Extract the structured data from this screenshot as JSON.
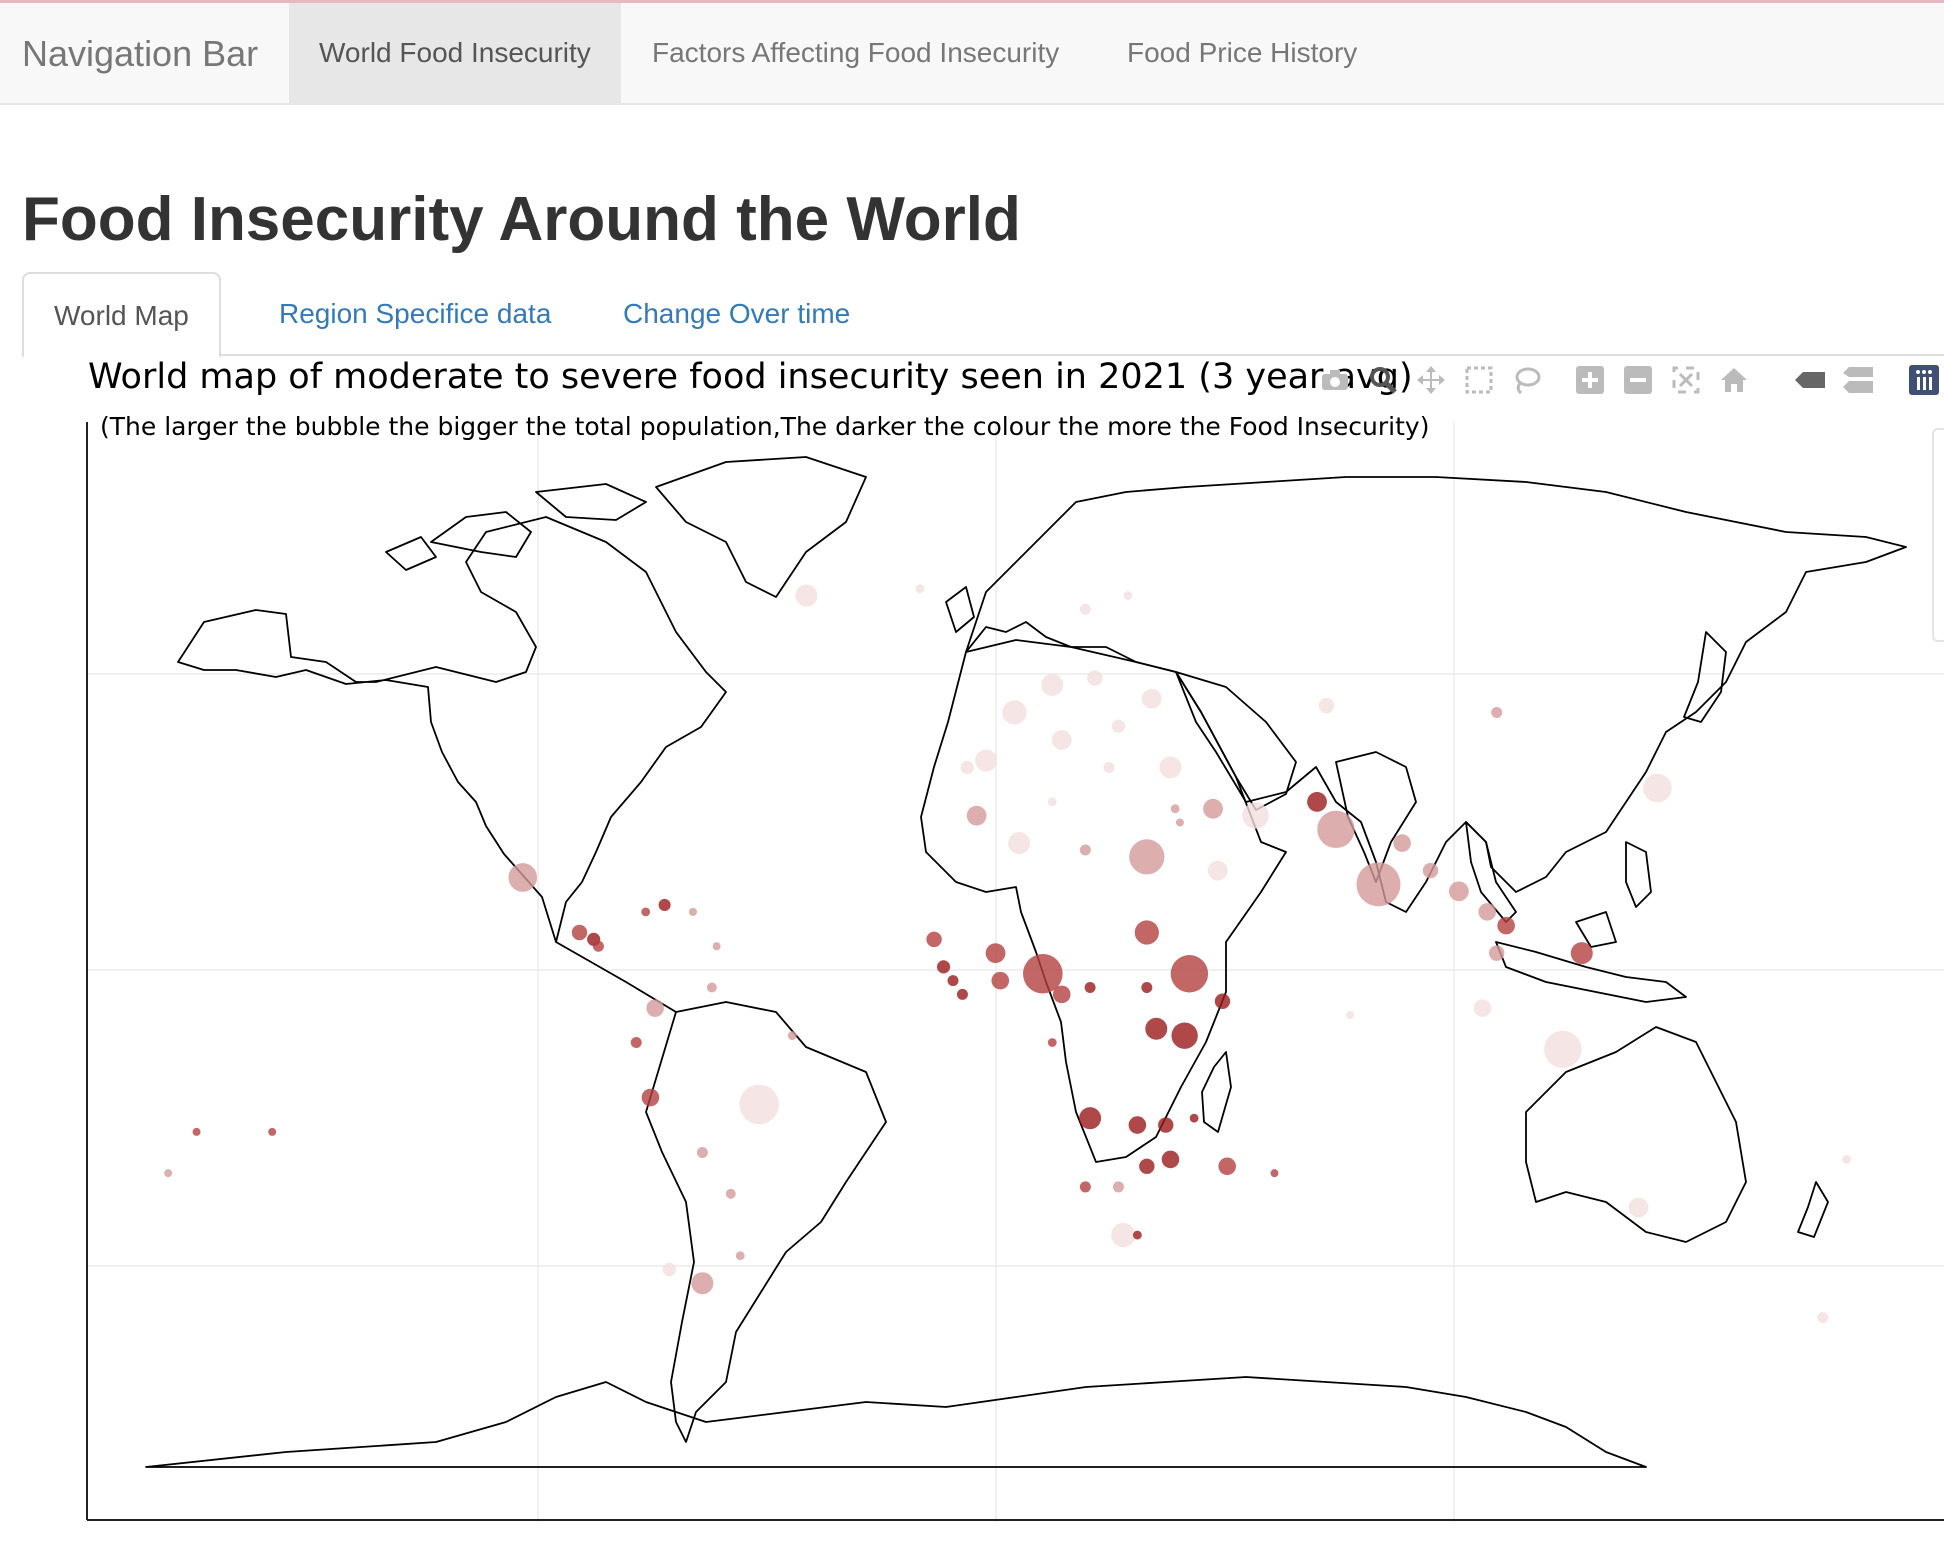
{
  "navbar": {
    "brand": "Navigation Bar",
    "links": [
      {
        "label": "World Food Insecurity",
        "active": true
      },
      {
        "label": "Factors Affecting Food Insecurity",
        "active": false
      },
      {
        "label": "Food Price History",
        "active": false
      }
    ]
  },
  "page": {
    "title": "Food Insecurity Around the World"
  },
  "tabs": [
    {
      "label": "World Map",
      "active": true
    },
    {
      "label": "Region Specifice data",
      "active": false
    },
    {
      "label": "Change Over time",
      "active": false
    }
  ],
  "chart": {
    "title": "World map of moderate to severe food insecurity seen in 2021 (3 year avg)",
    "subtitle": "(The larger the bubble the bigger the total population,The darker the colour the more the Food Insecurity)"
  },
  "modebar": [
    {
      "name": "camera-icon"
    },
    {
      "name": "zoom-icon"
    },
    {
      "name": "pan-icon"
    },
    {
      "name": "box-select-icon"
    },
    {
      "name": "lasso-select-icon"
    },
    {
      "name": "zoom-in-icon"
    },
    {
      "name": "zoom-out-icon"
    },
    {
      "name": "autoscale-icon"
    },
    {
      "name": "reset-home-icon"
    },
    {
      "name": "hover-closest-icon"
    },
    {
      "name": "hover-compare-icon"
    },
    {
      "name": "plotly-logo-icon"
    }
  ],
  "colors": {
    "low": "#f2dede",
    "mid": "#d49a9a",
    "high": "#b34040",
    "very_high": "#9b1c1c"
  },
  "chart_data": {
    "type": "scatter",
    "projection": "equirectangular",
    "lon_range": [
      -180,
      180
    ],
    "lat_range": [
      -90,
      90
    ],
    "grid": true,
    "legend": "none",
    "points": [
      {
        "lon": -102,
        "lat": 23,
        "size": 26,
        "level": 0.45
      },
      {
        "lon": -90,
        "lat": 15,
        "size": 14,
        "level": 0.8
      },
      {
        "lon": -87,
        "lat": 14,
        "size": 12,
        "level": 0.85
      },
      {
        "lon": -86,
        "lat": 13,
        "size": 10,
        "level": 0.75
      },
      {
        "lon": -72,
        "lat": 19,
        "size": 11,
        "level": 0.95
      },
      {
        "lon": -76,
        "lat": 18,
        "size": 8,
        "level": 0.8
      },
      {
        "lon": -66,
        "lat": 18,
        "size": 7,
        "level": 0.35
      },
      {
        "lon": -61,
        "lat": 13,
        "size": 6,
        "level": 0.4
      },
      {
        "lon": -62,
        "lat": 7,
        "size": 9,
        "level": 0.45
      },
      {
        "lon": -74,
        "lat": 4,
        "size": 16,
        "level": 0.55
      },
      {
        "lon": -78,
        "lat": -1,
        "size": 10,
        "level": 0.6
      },
      {
        "lon": -75,
        "lat": -9,
        "size": 16,
        "level": 0.75
      },
      {
        "lon": -52,
        "lat": -10,
        "size": 36,
        "level": 0.3
      },
      {
        "lon": -58,
        "lat": -23,
        "size": 9,
        "level": 0.4
      },
      {
        "lon": -64,
        "lat": -17,
        "size": 10,
        "level": 0.5
      },
      {
        "lon": -56,
        "lat": -32,
        "size": 8,
        "level": 0.4
      },
      {
        "lon": -64,
        "lat": -36,
        "size": 20,
        "level": 0.55
      },
      {
        "lon": -71,
        "lat": -34,
        "size": 12,
        "level": 0.25
      },
      {
        "lon": -45,
        "lat": 0,
        "size": 8,
        "level": 0.45
      },
      {
        "lon": -42,
        "lat": 64,
        "size": 20,
        "level": 0.15
      },
      {
        "lon": -18,
        "lat": 65,
        "size": 8,
        "level": 0.1
      },
      {
        "lon": -8,
        "lat": 39,
        "size": 12,
        "level": 0.2
      },
      {
        "lon": -4,
        "lat": 40,
        "size": 20,
        "level": 0.15
      },
      {
        "lon": 2,
        "lat": 47,
        "size": 22,
        "level": 0.15
      },
      {
        "lon": 10,
        "lat": 51,
        "size": 20,
        "level": 0.1
      },
      {
        "lon": 12,
        "lat": 43,
        "size": 18,
        "level": 0.15
      },
      {
        "lon": 19,
        "lat": 52,
        "size": 14,
        "level": 0.15
      },
      {
        "lon": 24,
        "lat": 45,
        "size": 12,
        "level": 0.2
      },
      {
        "lon": 31,
        "lat": 49,
        "size": 18,
        "level": 0.2
      },
      {
        "lon": 17,
        "lat": 62,
        "size": 10,
        "level": 0.1
      },
      {
        "lon": 26,
        "lat": 64,
        "size": 8,
        "level": 0.1
      },
      {
        "lon": 22,
        "lat": 39,
        "size": 10,
        "level": 0.2
      },
      {
        "lon": 35,
        "lat": 39,
        "size": 20,
        "level": 0.25
      },
      {
        "lon": -6,
        "lat": 32,
        "size": 18,
        "level": 0.35
      },
      {
        "lon": 3,
        "lat": 28,
        "size": 20,
        "level": 0.25
      },
      {
        "lon": 10,
        "lat": 34,
        "size": 8,
        "level": 0.25
      },
      {
        "lon": 17,
        "lat": 27,
        "size": 10,
        "level": 0.4
      },
      {
        "lon": 30,
        "lat": 26,
        "size": 32,
        "level": 0.35
      },
      {
        "lon": 36,
        "lat": 33,
        "size": 8,
        "level": 0.5
      },
      {
        "lon": 37,
        "lat": 31,
        "size": 6,
        "level": 0.55
      },
      {
        "lon": 44,
        "lat": 33,
        "size": 18,
        "level": 0.4
      },
      {
        "lon": 45,
        "lat": 24,
        "size": 18,
        "level": 0.2
      },
      {
        "lon": 53,
        "lat": 32,
        "size": 24,
        "level": 0.3
      },
      {
        "lon": 66,
        "lat": 34,
        "size": 18,
        "level": 0.9
      },
      {
        "lon": 70,
        "lat": 30,
        "size": 34,
        "level": 0.5
      },
      {
        "lon": 68,
        "lat": 48,
        "size": 14,
        "level": 0.15
      },
      {
        "lon": 104,
        "lat": 47,
        "size": 10,
        "level": 0.4
      },
      {
        "lon": 90,
        "lat": 24,
        "size": 14,
        "level": 0.5
      },
      {
        "lon": 84,
        "lat": 28,
        "size": 16,
        "level": 0.5
      },
      {
        "lon": 79,
        "lat": 22,
        "size": 40,
        "level": 0.4
      },
      {
        "lon": 96,
        "lat": 21,
        "size": 18,
        "level": 0.45
      },
      {
        "lon": 102,
        "lat": 18,
        "size": 16,
        "level": 0.35
      },
      {
        "lon": 104,
        "lat": 12,
        "size": 14,
        "level": 0.55
      },
      {
        "lon": 106,
        "lat": 16,
        "size": 16,
        "level": 0.65
      },
      {
        "lon": 122,
        "lat": 12,
        "size": 20,
        "level": 0.8
      },
      {
        "lon": 101,
        "lat": 4,
        "size": 16,
        "level": 0.2
      },
      {
        "lon": 118,
        "lat": -2,
        "size": 34,
        "level": 0.2
      },
      {
        "lon": 138,
        "lat": 36,
        "size": 26,
        "level": 0.15
      },
      {
        "lon": 134,
        "lat": -25,
        "size": 18,
        "level": 0.15
      },
      {
        "lon": 173,
        "lat": -41,
        "size": 10,
        "level": 0.15
      },
      {
        "lon": 178,
        "lat": -18,
        "size": 8,
        "level": 0.3
      },
      {
        "lon": 73,
        "lat": 3,
        "size": 6,
        "level": 0.3
      },
      {
        "lon": -15,
        "lat": 14,
        "size": 14,
        "level": 0.8
      },
      {
        "lon": -13,
        "lat": 10,
        "size": 12,
        "level": 0.85
      },
      {
        "lon": -11,
        "lat": 8,
        "size": 10,
        "level": 0.9
      },
      {
        "lon": -9,
        "lat": 6,
        "size": 10,
        "level": 0.85
      },
      {
        "lon": -2,
        "lat": 12,
        "size": 18,
        "level": 0.75
      },
      {
        "lon": -1,
        "lat": 8,
        "size": 16,
        "level": 0.75
      },
      {
        "lon": 8,
        "lat": 9,
        "size": 36,
        "level": 0.7
      },
      {
        "lon": 12,
        "lat": 6,
        "size": 16,
        "level": 0.6
      },
      {
        "lon": 18,
        "lat": 7,
        "size": 10,
        "level": 0.9
      },
      {
        "lon": 30,
        "lat": 7,
        "size": 10,
        "level": 0.95
      },
      {
        "lon": 30,
        "lat": 15,
        "size": 22,
        "level": 0.65
      },
      {
        "lon": 39,
        "lat": 9,
        "size": 34,
        "level": 0.7
      },
      {
        "lon": 46,
        "lat": 5,
        "size": 14,
        "level": 0.85
      },
      {
        "lon": 32,
        "lat": 1,
        "size": 20,
        "level": 0.9
      },
      {
        "lon": 38,
        "lat": 0,
        "size": 24,
        "level": 0.85
      },
      {
        "lon": 10,
        "lat": -1,
        "size": 8,
        "level": 0.6
      },
      {
        "lon": 18,
        "lat": -12,
        "size": 20,
        "level": 0.95
      },
      {
        "lon": 28,
        "lat": -13,
        "size": 16,
        "level": 0.9
      },
      {
        "lon": 34,
        "lat": -13,
        "size": 14,
        "level": 0.95
      },
      {
        "lon": 35,
        "lat": -18,
        "size": 16,
        "level": 0.9
      },
      {
        "lon": 30,
        "lat": -19,
        "size": 14,
        "level": 0.95
      },
      {
        "lon": 40,
        "lat": -12,
        "size": 8,
        "level": 0.95
      },
      {
        "lon": 47,
        "lat": -19,
        "size": 16,
        "level": 0.8
      },
      {
        "lon": 57,
        "lat": -20,
        "size": 6,
        "level": 0.75
      },
      {
        "lon": 17,
        "lat": -22,
        "size": 10,
        "level": 0.6
      },
      {
        "lon": 24,
        "lat": -22,
        "size": 10,
        "level": 0.55
      },
      {
        "lon": 25,
        "lat": -29,
        "size": 22,
        "level": 0.3
      },
      {
        "lon": 28,
        "lat": -29,
        "size": 8,
        "level": 0.95
      },
      {
        "lon": -155,
        "lat": -14,
        "size": 6,
        "level": 0.8
      },
      {
        "lon": -171,
        "lat": -14,
        "size": 6,
        "level": 0.6
      },
      {
        "lon": -177,
        "lat": -20,
        "size": 6,
        "level": 0.55
      }
    ]
  }
}
